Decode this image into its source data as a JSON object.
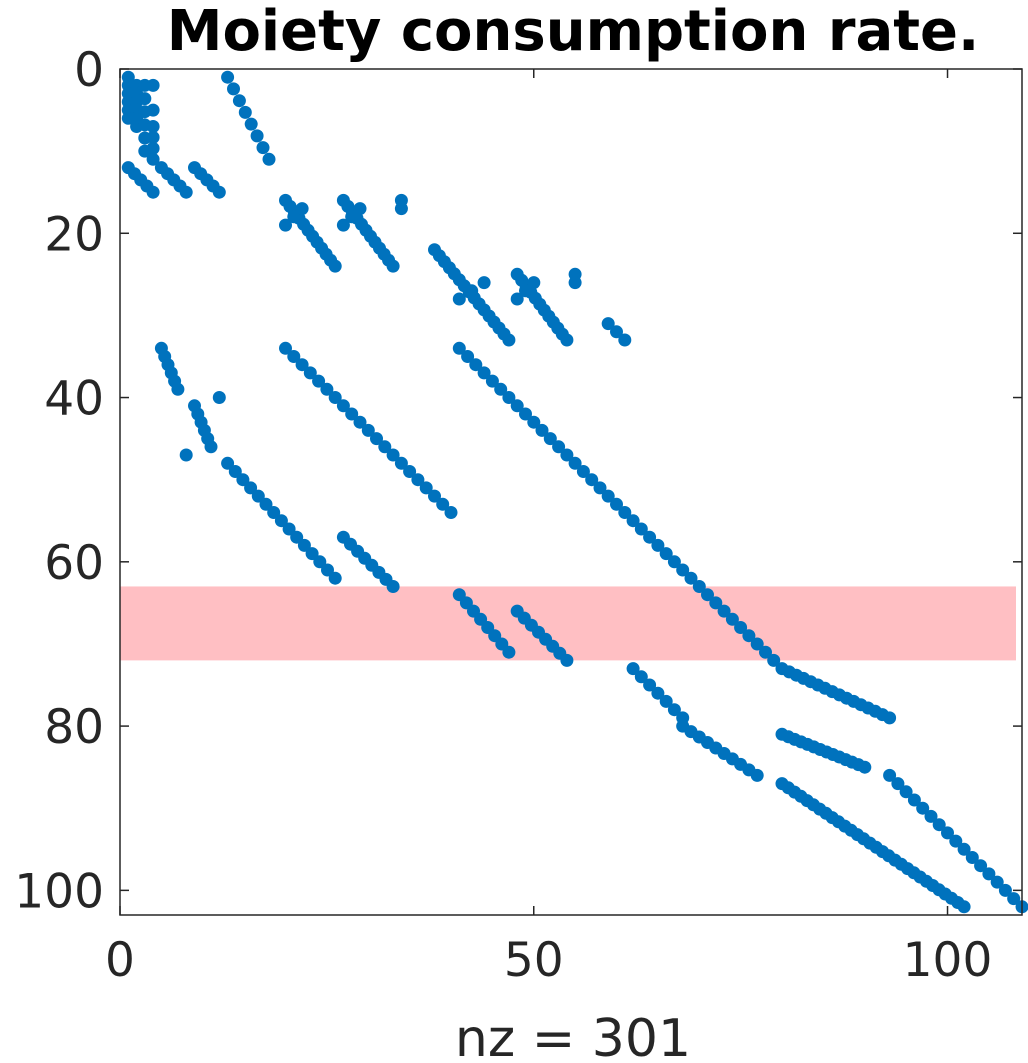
{
  "chart_data": {
    "type": "scatter",
    "title": "Moiety consumption rate.",
    "xlabel": "nz = 301",
    "ylabel": "",
    "xlim": [
      0,
      109
    ],
    "ylim": [
      0,
      103
    ],
    "y_reversed": true,
    "xticks": [
      0,
      50,
      100
    ],
    "yticks": [
      0,
      20,
      40,
      60,
      80,
      100
    ],
    "grid": false,
    "marker_color": "#0072BD",
    "highlight": {
      "y_range": [
        63,
        72
      ],
      "color": "#FFBFC3"
    },
    "nz": 301,
    "segments": [
      {
        "x0": 1,
        "y0": 1,
        "x1": 1,
        "y1": 6,
        "n": 6
      },
      {
        "x0": 2,
        "y0": 2,
        "x1": 2,
        "y1": 7,
        "n": 6
      },
      {
        "x0": 3,
        "y0": 2,
        "x1": 3,
        "y1": 10,
        "n": 6
      },
      {
        "x0": 4,
        "y0": 7,
        "x1": 4,
        "y1": 11,
        "n": 4
      },
      {
        "x0": 4,
        "y0": 2,
        "x1": 4,
        "y1": 5,
        "n": 2
      },
      {
        "x0": 13,
        "y0": 1,
        "x1": 18,
        "y1": 11,
        "n": 8
      },
      {
        "x0": 1,
        "y0": 12,
        "x1": 4,
        "y1": 15,
        "n": 5
      },
      {
        "x0": 5,
        "y0": 12,
        "x1": 8,
        "y1": 15,
        "n": 5
      },
      {
        "x0": 9,
        "y0": 12,
        "x1": 12,
        "y1": 15,
        "n": 5
      },
      {
        "x0": 20,
        "y0": 16,
        "x1": 26,
        "y1": 24,
        "n": 12
      },
      {
        "x0": 20,
        "y0": 19,
        "x1": 22,
        "y1": 17,
        "n": 3
      },
      {
        "x0": 27,
        "y0": 16,
        "x1": 33,
        "y1": 24,
        "n": 12
      },
      {
        "x0": 27,
        "y0": 19,
        "x1": 29,
        "y1": 17,
        "n": 3
      },
      {
        "x0": 34,
        "y0": 16,
        "x1": 34,
        "y1": 17,
        "n": 2
      },
      {
        "x0": 38,
        "y0": 22,
        "x1": 47,
        "y1": 33,
        "n": 16
      },
      {
        "x0": 41,
        "y0": 28,
        "x1": 44,
        "y1": 26,
        "n": 3
      },
      {
        "x0": 48,
        "y0": 25,
        "x1": 54,
        "y1": 33,
        "n": 12
      },
      {
        "x0": 48,
        "y0": 28,
        "x1": 50,
        "y1": 26,
        "n": 3
      },
      {
        "x0": 55,
        "y0": 25,
        "x1": 55,
        "y1": 26,
        "n": 2
      },
      {
        "x0": 59,
        "y0": 31,
        "x1": 61,
        "y1": 33,
        "n": 3
      },
      {
        "x0": 5,
        "y0": 34,
        "x1": 7,
        "y1": 39,
        "n": 6
      },
      {
        "x0": 9,
        "y0": 41,
        "x1": 11,
        "y1": 46,
        "n": 6
      },
      {
        "x0": 8,
        "y0": 47,
        "x1": 8,
        "y1": 47,
        "n": 1
      },
      {
        "x0": 12,
        "y0": 40,
        "x1": 12,
        "y1": 40,
        "n": 1
      },
      {
        "x0": 13,
        "y0": 48,
        "x1": 26,
        "y1": 62,
        "n": 15
      },
      {
        "x0": 27,
        "y0": 57,
        "x1": 33,
        "y1": 63,
        "n": 8
      },
      {
        "x0": 20,
        "y0": 34,
        "x1": 40,
        "y1": 54,
        "n": 21
      },
      {
        "x0": 41,
        "y0": 34,
        "x1": 79,
        "y1": 72,
        "n": 39
      },
      {
        "x0": 41,
        "y0": 64,
        "x1": 47,
        "y1": 71,
        "n": 8
      },
      {
        "x0": 48,
        "y0": 66,
        "x1": 54,
        "y1": 72,
        "n": 8
      },
      {
        "x0": 62,
        "y0": 73,
        "x1": 68,
        "y1": 79,
        "n": 7
      },
      {
        "x0": 68,
        "y0": 80,
        "x1": 77,
        "y1": 86,
        "n": 10
      },
      {
        "x0": 80,
        "y0": 73,
        "x1": 93,
        "y1": 79,
        "n": 16
      },
      {
        "x0": 80,
        "y0": 81,
        "x1": 90,
        "y1": 85,
        "n": 14
      },
      {
        "x0": 80,
        "y0": 87,
        "x1": 102,
        "y1": 102,
        "n": 30
      },
      {
        "x0": 93,
        "y0": 86,
        "x1": 109,
        "y1": 102,
        "n": 17
      }
    ]
  }
}
